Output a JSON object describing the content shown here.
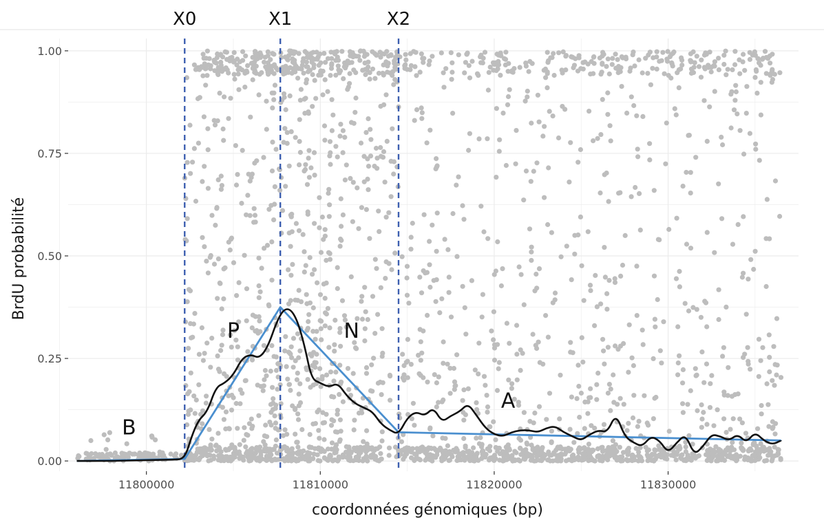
{
  "chart_data": {
    "type": "scatter",
    "xlabel": "coordonnées génomiques (bp)",
    "ylabel": "BrdU probabilité",
    "xlim": [
      11795500,
      11837500
    ],
    "ylim": [
      -0.025,
      1.03
    ],
    "x_ticks": [
      {
        "value": 11800000,
        "label": "11800000"
      },
      {
        "value": 11810000,
        "label": "11810000"
      },
      {
        "value": 11820000,
        "label": "11820000"
      },
      {
        "value": 11830000,
        "label": "11830000"
      }
    ],
    "y_ticks": [
      {
        "value": 0.0,
        "label": "0.00"
      },
      {
        "value": 0.25,
        "label": "0.25"
      },
      {
        "value": 0.5,
        "label": "0.50"
      },
      {
        "value": 0.75,
        "label": "0.75"
      },
      {
        "value": 1.0,
        "label": "1.00"
      }
    ],
    "grid": true,
    "colors": {
      "points": "#bdbdbd",
      "smooth": "#111111",
      "segments": "#4a8fcf",
      "markers": "#3d5fb0",
      "grid": "#ebebeb"
    },
    "markers": [
      {
        "label": "X0",
        "x": 11802200
      },
      {
        "label": "X1",
        "x": 11807700
      },
      {
        "label": "X2",
        "x": 11814500
      }
    ],
    "region_labels": [
      {
        "label": "B",
        "x": 11799000,
        "y": 0.065
      },
      {
        "label": "P",
        "x": 11805000,
        "y": 0.3
      },
      {
        "label": "N",
        "x": 11811800,
        "y": 0.3
      },
      {
        "label": "A",
        "x": 11820800,
        "y": 0.13
      }
    ],
    "segmented_fit": {
      "x": [
        11796000,
        11802200,
        11807700,
        11814500,
        11836500
      ],
      "y": [
        0.0,
        0.005,
        0.375,
        0.07,
        0.05
      ]
    },
    "smooth_curve": {
      "x": [
        11796000,
        11798000,
        11800000,
        11801500,
        11802200,
        11802600,
        11803000,
        11803500,
        11804000,
        11804500,
        11805000,
        11805500,
        11806000,
        11806500,
        11807000,
        11807500,
        11807900,
        11808300,
        11808700,
        11809100,
        11809500,
        11810000,
        11810500,
        11811000,
        11811500,
        11812000,
        11812500,
        11813000,
        11813500,
        11814000,
        11814500,
        11815000,
        11815500,
        11816000,
        11816500,
        11817000,
        11817500,
        11818000,
        11818500,
        11819000,
        11819500,
        11820000,
        11820500,
        11821000,
        11821500,
        11822000,
        11822500,
        11823000,
        11823500,
        11824000,
        11824500,
        11825000,
        11825500,
        11826000,
        11826500,
        11827000,
        11827500,
        11828000,
        11828500,
        11829000,
        11829500,
        11830000,
        11830500,
        11831000,
        11831500,
        11832000,
        11832500,
        11833000,
        11833500,
        11834000,
        11834500,
        11835000,
        11835500,
        11836000,
        11836500
      ],
      "y": [
        0.0,
        0.0,
        0.002,
        0.003,
        0.005,
        0.06,
        0.1,
        0.12,
        0.18,
        0.19,
        0.21,
        0.25,
        0.26,
        0.25,
        0.28,
        0.34,
        0.37,
        0.37,
        0.34,
        0.28,
        0.2,
        0.19,
        0.18,
        0.19,
        0.16,
        0.14,
        0.13,
        0.12,
        0.09,
        0.075,
        0.065,
        0.105,
        0.12,
        0.11,
        0.13,
        0.095,
        0.11,
        0.12,
        0.14,
        0.11,
        0.08,
        0.065,
        0.06,
        0.07,
        0.075,
        0.075,
        0.07,
        0.08,
        0.085,
        0.07,
        0.06,
        0.05,
        0.065,
        0.075,
        0.07,
        0.115,
        0.06,
        0.045,
        0.035,
        0.06,
        0.05,
        0.02,
        0.045,
        0.065,
        0.015,
        0.035,
        0.065,
        0.06,
        0.05,
        0.065,
        0.045,
        0.07,
        0.05,
        0.04,
        0.05
      ]
    }
  }
}
